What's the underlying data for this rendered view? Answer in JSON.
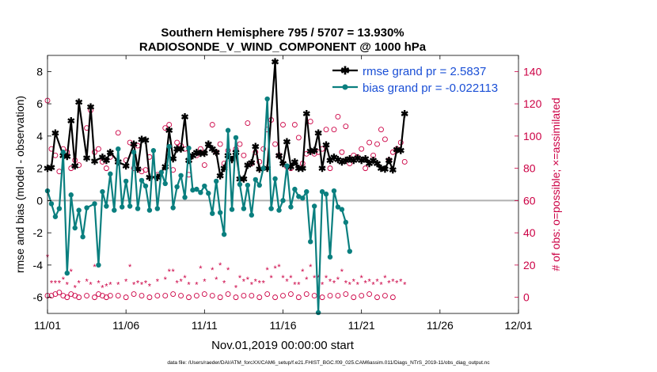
{
  "chart_data": {
    "type": "line",
    "title_line1": "Southern Hemisphere 795 / 5707 = 13.930%",
    "title_line2": "RADIOSONDE_V_WIND_COMPONENT @ 1000 hPa",
    "xlabel": "Nov.01,2019 00:00:00 start",
    "ylabel_left": "rmse and bias (model - observation)",
    "ylabel_right": "# of obs: o=possible; ×=assimilated",
    "footer": "data file: /Users/raeder/DAI/ATM_forcXX/CAM6_setup/f.e21.FHIST_BGC.f09_025.CAM6assim.011/Diags_NTrS_2019-11/obs_diag_output.nc",
    "x_ticks": [
      "11/01",
      "11/06",
      "11/11",
      "11/16",
      "11/21",
      "11/26",
      "12/01"
    ],
    "x_tick_values": [
      0,
      5,
      10,
      15,
      20,
      25,
      30
    ],
    "xlim": [
      0,
      30
    ],
    "y_left_ticks": [
      "-6",
      "-4",
      "-2",
      "0",
      "2",
      "4",
      "6",
      "8"
    ],
    "y_left_tick_values": [
      -6,
      -4,
      -2,
      0,
      2,
      4,
      6,
      8
    ],
    "ylim_left": [
      -7,
      9
    ],
    "y_right_ticks": [
      "0",
      "20",
      "40",
      "60",
      "80",
      "100",
      "120",
      "140"
    ],
    "y_right_tick_values": [
      0,
      20,
      40,
      60,
      80,
      100,
      120,
      140
    ],
    "ylim_right": [
      -10,
      150
    ],
    "zero_line": 0,
    "legend": [
      {
        "label": "rmse grand pr = 2.5837",
        "color": "#000000"
      },
      {
        "label": "bias grand pr = -0.022113",
        "color": "#0a7f7f"
      }
    ],
    "colors": {
      "rmse": "#000000",
      "bias": "#0a7f7f",
      "counts": "#cc0044",
      "legend_text": "#1a4fd6",
      "zero_line": "#b0b0b0"
    },
    "rmse": [
      [
        0.0,
        2.0
      ],
      [
        0.25,
        2.05
      ],
      [
        0.5,
        4.2
      ],
      [
        1.0,
        2.8
      ],
      [
        1.25,
        2.75
      ],
      [
        1.5,
        4.95
      ],
      [
        1.75,
        2.15
      ],
      [
        2.0,
        6.1
      ],
      [
        2.5,
        2.65
      ],
      [
        2.75,
        5.8
      ],
      [
        3.0,
        2.45
      ],
      [
        3.5,
        2.7
      ],
      [
        3.75,
        2.5
      ],
      [
        4.0,
        3.0
      ],
      [
        4.5,
        2.4
      ],
      [
        5.0,
        2.15
      ],
      [
        5.5,
        3.5
      ],
      [
        5.75,
        1.95
      ],
      [
        6.0,
        3.8
      ],
      [
        6.25,
        3.75
      ],
      [
        6.5,
        1.45
      ],
      [
        7.0,
        1.45
      ],
      [
        7.5,
        2.1
      ],
      [
        7.75,
        4.35
      ],
      [
        8.0,
        2.6
      ],
      [
        8.25,
        3.2
      ],
      [
        8.5,
        3.2
      ],
      [
        8.75,
        5.2
      ],
      [
        9.0,
        2.5
      ],
      [
        9.25,
        2.8
      ],
      [
        9.5,
        3.0
      ],
      [
        9.75,
        2.95
      ],
      [
        10.0,
        2.95
      ],
      [
        10.25,
        3.5
      ],
      [
        10.5,
        3.2
      ],
      [
        10.75,
        3.0
      ],
      [
        11.0,
        1.55
      ],
      [
        11.25,
        2.0
      ],
      [
        11.5,
        2.8
      ],
      [
        11.75,
        2.55
      ],
      [
        12.0,
        3.0
      ],
      [
        12.25,
        1.35
      ],
      [
        12.5,
        1.35
      ],
      [
        12.75,
        2.2
      ],
      [
        13.0,
        2.35
      ],
      [
        13.25,
        3.35
      ],
      [
        13.5,
        1.95
      ],
      [
        14.0,
        2.0
      ],
      [
        14.5,
        8.6
      ],
      [
        14.75,
        2.8
      ],
      [
        15.0,
        2.3
      ],
      [
        15.25,
        3.65
      ],
      [
        15.5,
        2.1
      ],
      [
        15.75,
        2.4
      ],
      [
        16.0,
        2.0
      ],
      [
        16.25,
        2.0
      ],
      [
        16.5,
        5.4
      ],
      [
        16.75,
        3.05
      ],
      [
        17.0,
        3.1
      ],
      [
        17.25,
        4.2
      ],
      [
        17.5,
        2.0
      ],
      [
        17.75,
        3.45
      ],
      [
        18.0,
        2.5
      ],
      [
        18.25,
        2.7
      ],
      [
        18.5,
        2.55
      ],
      [
        18.75,
        2.4
      ],
      [
        19.0,
        2.5
      ],
      [
        19.25,
        2.6
      ],
      [
        19.5,
        2.5
      ],
      [
        19.75,
        2.65
      ],
      [
        20.0,
        2.5
      ],
      [
        20.25,
        2.6
      ],
      [
        20.5,
        2.3
      ],
      [
        20.75,
        2.5
      ],
      [
        21.0,
        2.3
      ],
      [
        21.25,
        2.0
      ],
      [
        21.5,
        1.95
      ],
      [
        21.75,
        2.5
      ],
      [
        22.0,
        1.9
      ],
      [
        22.25,
        3.15
      ],
      [
        22.5,
        3.1
      ],
      [
        22.75,
        5.4
      ]
    ],
    "bias": [
      [
        0.0,
        0.6
      ],
      [
        0.25,
        -0.2
      ],
      [
        0.5,
        -1.0
      ],
      [
        0.75,
        -0.5
      ],
      [
        1.0,
        3.0
      ],
      [
        1.25,
        -4.5
      ],
      [
        1.5,
        0.35
      ],
      [
        1.75,
        -1.7
      ],
      [
        2.0,
        -0.6
      ],
      [
        2.25,
        -2.25
      ],
      [
        2.5,
        -0.45
      ],
      [
        3.0,
        -0.2
      ],
      [
        3.25,
        -4.0
      ],
      [
        3.5,
        0.55
      ],
      [
        3.75,
        -0.35
      ],
      [
        4.0,
        1.65
      ],
      [
        4.25,
        -0.6
      ],
      [
        4.5,
        3.2
      ],
      [
        4.75,
        -0.4
      ],
      [
        5.0,
        1.2
      ],
      [
        5.25,
        -0.35
      ],
      [
        5.5,
        3.0
      ],
      [
        5.75,
        -0.5
      ],
      [
        6.0,
        1.25
      ],
      [
        6.25,
        0.9
      ],
      [
        6.5,
        -0.6
      ],
      [
        6.75,
        3.1
      ],
      [
        7.0,
        -0.5
      ],
      [
        7.25,
        1.75
      ],
      [
        7.5,
        1.05
      ],
      [
        7.75,
        3.35
      ],
      [
        8.0,
        -0.45
      ],
      [
        8.25,
        0.85
      ],
      [
        8.5,
        1.55
      ],
      [
        8.75,
        0.2
      ],
      [
        9.0,
        3.25
      ],
      [
        9.25,
        0.65
      ],
      [
        9.5,
        0.7
      ],
      [
        9.75,
        0.5
      ],
      [
        10.0,
        0.9
      ],
      [
        10.25,
        0.45
      ],
      [
        10.5,
        -0.8
      ],
      [
        10.75,
        1.2
      ],
      [
        11.0,
        -0.75
      ],
      [
        11.25,
        -2.1
      ],
      [
        11.5,
        4.35
      ],
      [
        11.75,
        -0.55
      ],
      [
        12.0,
        3.9
      ],
      [
        12.25,
        1.0
      ],
      [
        12.5,
        -0.5
      ],
      [
        12.75,
        0.95
      ],
      [
        13.0,
        -0.9
      ],
      [
        13.25,
        1.3
      ],
      [
        13.5,
        0.95
      ],
      [
        13.75,
        2.0
      ],
      [
        14.0,
        6.3
      ],
      [
        14.25,
        -0.5
      ],
      [
        14.5,
        1.35
      ],
      [
        14.75,
        -0.6
      ],
      [
        15.0,
        0.0
      ],
      [
        15.25,
        2.15
      ],
      [
        15.5,
        -0.4
      ],
      [
        15.75,
        0.7
      ],
      [
        16.0,
        0.25
      ],
      [
        16.25,
        0.15
      ],
      [
        16.5,
        0.55
      ],
      [
        16.75,
        -2.55
      ],
      [
        17.0,
        -0.35
      ],
      [
        17.25,
        -6.95
      ],
      [
        17.5,
        0.55
      ],
      [
        17.75,
        0.4
      ],
      [
        18.0,
        -3.5
      ],
      [
        18.25,
        0.6
      ],
      [
        18.5,
        -0.4
      ],
      [
        18.75,
        -0.55
      ],
      [
        19.0,
        -1.35
      ],
      [
        19.25,
        -3.15
      ]
    ],
    "possible_counts": [
      [
        0.0,
        122
      ],
      [
        0.25,
        92
      ],
      [
        0.5,
        88
      ],
      [
        0.75,
        78
      ],
      [
        1.0,
        92
      ],
      [
        1.25,
        90
      ],
      [
        1.5,
        80
      ],
      [
        1.75,
        85
      ],
      [
        2.0,
        82
      ],
      [
        2.5,
        105
      ],
      [
        2.75,
        116
      ],
      [
        3.0,
        90
      ],
      [
        3.25,
        92
      ],
      [
        3.5,
        84
      ],
      [
        3.75,
        80
      ],
      [
        4.0,
        87
      ],
      [
        4.5,
        102
      ],
      [
        5.0,
        85
      ],
      [
        5.25,
        96
      ],
      [
        5.5,
        80
      ],
      [
        5.75,
        94
      ],
      [
        6.0,
        78
      ],
      [
        6.25,
        79
      ],
      [
        6.5,
        87
      ],
      [
        7.0,
        76
      ],
      [
        7.5,
        105
      ],
      [
        7.75,
        107
      ],
      [
        8.0,
        79
      ],
      [
        8.25,
        96
      ],
      [
        8.5,
        94
      ],
      [
        8.75,
        92
      ],
      [
        9.0,
        76
      ],
      [
        9.5,
        88
      ],
      [
        9.75,
        92
      ],
      [
        10.0,
        82
      ],
      [
        10.5,
        107
      ],
      [
        10.75,
        90
      ],
      [
        11.0,
        95
      ],
      [
        11.25,
        83
      ],
      [
        11.5,
        91
      ],
      [
        12.0,
        92
      ],
      [
        12.25,
        95
      ],
      [
        12.5,
        88
      ],
      [
        12.75,
        108
      ],
      [
        13.0,
        83
      ],
      [
        13.25,
        90
      ],
      [
        13.5,
        84
      ],
      [
        13.75,
        92
      ],
      [
        14.0,
        104
      ],
      [
        14.25,
        110
      ],
      [
        14.5,
        95
      ],
      [
        14.75,
        88
      ],
      [
        15.0,
        107
      ],
      [
        15.25,
        81
      ],
      [
        15.5,
        80
      ],
      [
        15.75,
        107
      ],
      [
        16.0,
        99
      ],
      [
        16.25,
        83
      ],
      [
        16.5,
        89
      ],
      [
        16.75,
        109
      ],
      [
        17.0,
        89
      ],
      [
        17.25,
        90
      ],
      [
        17.5,
        92
      ],
      [
        17.75,
        104
      ],
      [
        18.0,
        80
      ],
      [
        18.25,
        104
      ],
      [
        18.5,
        112
      ],
      [
        18.75,
        90
      ],
      [
        19.0,
        106
      ],
      [
        19.25,
        83
      ],
      [
        19.5,
        88
      ],
      [
        19.75,
        87
      ],
      [
        20.0,
        92
      ],
      [
        20.25,
        80
      ],
      [
        20.5,
        96
      ],
      [
        20.75,
        88
      ],
      [
        21.0,
        95
      ],
      [
        21.25,
        104
      ],
      [
        21.5,
        98
      ],
      [
        21.75,
        85
      ],
      [
        22.0,
        90
      ],
      [
        22.25,
        92
      ],
      [
        22.5,
        96
      ],
      [
        22.75,
        84
      ]
    ],
    "assimilated_counts": [
      [
        0.0,
        25
      ],
      [
        0.25,
        9
      ],
      [
        0.5,
        9
      ],
      [
        0.75,
        9
      ],
      [
        1.0,
        11
      ],
      [
        1.25,
        8
      ],
      [
        1.5,
        16
      ],
      [
        1.75,
        6
      ],
      [
        2.0,
        9
      ],
      [
        2.5,
        10
      ],
      [
        2.75,
        8
      ],
      [
        3.0,
        19
      ],
      [
        3.25,
        9
      ],
      [
        3.5,
        6
      ],
      [
        3.75,
        7
      ],
      [
        4.0,
        8
      ],
      [
        4.5,
        8
      ],
      [
        5.0,
        10
      ],
      [
        5.25,
        19
      ],
      [
        5.5,
        8
      ],
      [
        5.75,
        9
      ],
      [
        6.0,
        8
      ],
      [
        6.25,
        9
      ],
      [
        6.5,
        7
      ],
      [
        7.0,
        10
      ],
      [
        7.5,
        11
      ],
      [
        7.75,
        16
      ],
      [
        8.0,
        16
      ],
      [
        8.25,
        9
      ],
      [
        8.5,
        10
      ],
      [
        8.75,
        12
      ],
      [
        9.0,
        8
      ],
      [
        9.5,
        8
      ],
      [
        9.75,
        18
      ],
      [
        10.0,
        10
      ],
      [
        10.5,
        17
      ],
      [
        10.75,
        11
      ],
      [
        11.0,
        20
      ],
      [
        11.25,
        9
      ],
      [
        11.5,
        17
      ],
      [
        12.0,
        6
      ],
      [
        12.25,
        12
      ],
      [
        12.5,
        10
      ],
      [
        12.75,
        11
      ],
      [
        13.0,
        8
      ],
      [
        13.25,
        10
      ],
      [
        13.5,
        9
      ],
      [
        13.75,
        9
      ],
      [
        14.0,
        17
      ],
      [
        14.25,
        12
      ],
      [
        14.5,
        18
      ],
      [
        14.75,
        19
      ],
      [
        15.0,
        12
      ],
      [
        15.25,
        10
      ],
      [
        15.5,
        12
      ],
      [
        15.75,
        8
      ],
      [
        16.0,
        8
      ],
      [
        16.25,
        16
      ],
      [
        16.5,
        11
      ],
      [
        16.75,
        19
      ],
      [
        17.0,
        12
      ],
      [
        17.25,
        12
      ],
      [
        17.5,
        8
      ],
      [
        17.75,
        12
      ],
      [
        18.0,
        10
      ],
      [
        18.25,
        9
      ],
      [
        18.5,
        11
      ],
      [
        18.75,
        16
      ],
      [
        19.0,
        9
      ],
      [
        19.25,
        8
      ],
      [
        19.5,
        10
      ],
      [
        19.75,
        8
      ],
      [
        20.0,
        12
      ],
      [
        20.25,
        9
      ],
      [
        20.5,
        10
      ],
      [
        20.75,
        8
      ],
      [
        21.0,
        10
      ],
      [
        21.25,
        8
      ],
      [
        21.5,
        12
      ],
      [
        21.75,
        9
      ],
      [
        22.0,
        10
      ],
      [
        22.25,
        9
      ],
      [
        22.5,
        10
      ],
      [
        22.75,
        8
      ]
    ],
    "possible_counts_baseline": [
      [
        0.0,
        1
      ],
      [
        0.25,
        1
      ],
      [
        0.5,
        2
      ],
      [
        0.75,
        3
      ],
      [
        1.0,
        1
      ],
      [
        1.25,
        0
      ],
      [
        1.5,
        2
      ],
      [
        1.75,
        1
      ],
      [
        2.0,
        0
      ],
      [
        2.5,
        1
      ],
      [
        3.0,
        0
      ],
      [
        3.25,
        2
      ],
      [
        3.5,
        1
      ],
      [
        3.75,
        0
      ],
      [
        4.0,
        1
      ],
      [
        4.5,
        1
      ],
      [
        5.0,
        0
      ],
      [
        5.5,
        2
      ],
      [
        6.0,
        1
      ],
      [
        6.5,
        0
      ],
      [
        7.0,
        1
      ],
      [
        7.5,
        1
      ],
      [
        8.0,
        2
      ],
      [
        8.5,
        1
      ],
      [
        9.0,
        0
      ],
      [
        9.5,
        1
      ],
      [
        10.0,
        2
      ],
      [
        10.5,
        1
      ],
      [
        11.0,
        0
      ],
      [
        11.5,
        2
      ],
      [
        12.0,
        0
      ],
      [
        12.5,
        1
      ],
      [
        13.0,
        1
      ],
      [
        13.5,
        0
      ],
      [
        14.0,
        2
      ],
      [
        14.5,
        0
      ],
      [
        15.0,
        1
      ],
      [
        15.5,
        2
      ],
      [
        16.0,
        0
      ],
      [
        16.5,
        2
      ],
      [
        17.0,
        1
      ],
      [
        17.5,
        0
      ],
      [
        18.0,
        1
      ],
      [
        18.5,
        1
      ],
      [
        19.0,
        2
      ],
      [
        19.5,
        0
      ],
      [
        20.0,
        1
      ],
      [
        20.5,
        2
      ],
      [
        21.0,
        0
      ],
      [
        21.5,
        1
      ],
      [
        22.0,
        0
      ]
    ]
  }
}
